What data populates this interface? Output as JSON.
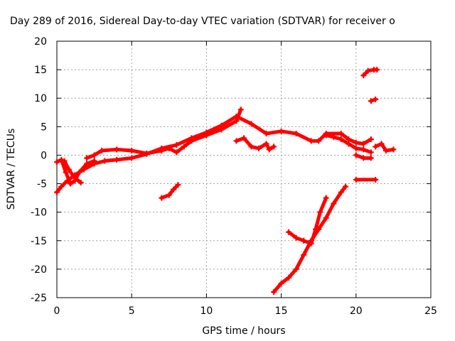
{
  "chart_data": {
    "type": "scatter",
    "title": "Day 289 of 2016, Sidereal Day-to-day VTEC variation (SDTVAR) for receiver o",
    "xlabel": "GPS time / hours",
    "ylabel": "SDTVAR / TECUs",
    "xlim": [
      0,
      25
    ],
    "ylim": [
      -25,
      20
    ],
    "xticks": [
      "0",
      "5",
      "10",
      "15",
      "20",
      "25"
    ],
    "yticks": [
      "20",
      "15",
      "10",
      "5",
      "0",
      "-5",
      "-10",
      "-15",
      "-20",
      "-25"
    ],
    "grid": true,
    "marker_color": "#ff0000",
    "series": [
      {
        "segments": [
          [
            [
              0.0,
              -6.5
            ],
            [
              0.3,
              -5.5
            ],
            [
              0.7,
              -4.5
            ],
            [
              1.2,
              -3.5
            ],
            [
              1.8,
              -2.5
            ],
            [
              2.5,
              -1.5
            ],
            [
              3.2,
              -1.0
            ],
            [
              4.0,
              -0.8
            ],
            [
              5.0,
              -0.5
            ],
            [
              6.0,
              0.2
            ],
            [
              7.0,
              1.2
            ],
            [
              8.0,
              1.8
            ],
            [
              9.0,
              3.0
            ],
            [
              10.0,
              4.0
            ],
            [
              11.0,
              5.2
            ],
            [
              12.0,
              6.8
            ],
            [
              13.0,
              5.5
            ],
            [
              14.0,
              3.8
            ],
            [
              15.0,
              4.2
            ],
            [
              16.0,
              3.8
            ],
            [
              17.0,
              2.5
            ],
            [
              17.5,
              2.5
            ],
            [
              18.0,
              3.8
            ],
            [
              19.0,
              3.8
            ],
            [
              19.5,
              2.8
            ],
            [
              20.0,
              2.2
            ],
            [
              20.5,
              2.0
            ],
            [
              21.0,
              2.8
            ]
          ],
          [
            [
              0.0,
              -1.2
            ],
            [
              0.3,
              -0.8
            ],
            [
              0.6,
              -3.0
            ],
            [
              0.9,
              -5.0
            ],
            [
              1.2,
              -4.5
            ],
            [
              1.5,
              -3.0
            ],
            [
              2.0,
              -1.5
            ],
            [
              2.5,
              -1.0
            ]
          ],
          [
            [
              0.5,
              -1.0
            ],
            [
              0.8,
              -2.5
            ],
            [
              1.2,
              -4.0
            ],
            [
              1.6,
              -4.8
            ]
          ],
          [
            [
              2.0,
              -0.5
            ],
            [
              2.5,
              0.0
            ],
            [
              3.0,
              0.8
            ],
            [
              4.0,
              1.0
            ],
            [
              5.0,
              0.8
            ],
            [
              6.0,
              0.3
            ],
            [
              7.0,
              0.8
            ],
            [
              7.5,
              1.2
            ],
            [
              8.0,
              0.5
            ],
            [
              8.5,
              1.5
            ],
            [
              9.0,
              2.5
            ],
            [
              10.0,
              3.5
            ],
            [
              11.0,
              4.5
            ],
            [
              12.0,
              6.0
            ],
            [
              12.3,
              8.0
            ]
          ],
          [
            [
              7.0,
              -7.5
            ],
            [
              7.5,
              -7.0
            ],
            [
              7.8,
              -6.0
            ],
            [
              8.1,
              -5.2
            ]
          ],
          [
            [
              12.0,
              2.5
            ],
            [
              12.5,
              3.0
            ],
            [
              13.0,
              1.5
            ],
            [
              13.5,
              1.2
            ],
            [
              14.0,
              2.0
            ],
            [
              14.2,
              1.0
            ],
            [
              14.5,
              1.5
            ]
          ],
          [
            [
              14.5,
              -24.0
            ],
            [
              15.0,
              -22.5
            ],
            [
              15.5,
              -21.5
            ],
            [
              16.0,
              -20.0
            ],
            [
              16.5,
              -17.5
            ],
            [
              17.0,
              -15.0
            ],
            [
              17.5,
              -13.0
            ],
            [
              18.0,
              -11.0
            ],
            [
              18.5,
              -8.5
            ],
            [
              19.0,
              -6.5
            ],
            [
              19.3,
              -5.5
            ]
          ],
          [
            [
              15.5,
              -13.5
            ],
            [
              16.0,
              -14.5
            ],
            [
              16.5,
              -15.0
            ],
            [
              17.0,
              -15.5
            ],
            [
              17.3,
              -13.0
            ],
            [
              17.6,
              -10.0
            ],
            [
              18.0,
              -7.5
            ]
          ],
          [
            [
              18.0,
              3.5
            ],
            [
              18.5,
              3.2
            ],
            [
              19.0,
              2.8
            ],
            [
              19.5,
              2.0
            ],
            [
              20.0,
              1.2
            ],
            [
              20.5,
              1.0
            ],
            [
              21.0,
              0.5
            ]
          ],
          [
            [
              20.0,
              0.0
            ],
            [
              20.5,
              -0.5
            ],
            [
              21.0,
              -0.5
            ]
          ],
          [
            [
              20.0,
              -4.3
            ],
            [
              21.3,
              -4.3
            ]
          ],
          [
            [
              20.5,
              14.0
            ],
            [
              20.8,
              14.8
            ],
            [
              21.2,
              15.0
            ],
            [
              21.4,
              15.0
            ]
          ],
          [
            [
              21.0,
              9.5
            ],
            [
              21.3,
              9.8
            ]
          ],
          [
            [
              21.3,
              1.5
            ],
            [
              21.7,
              2.0
            ],
            [
              22.0,
              0.8
            ],
            [
              22.5,
              1.0
            ]
          ]
        ]
      }
    ]
  }
}
